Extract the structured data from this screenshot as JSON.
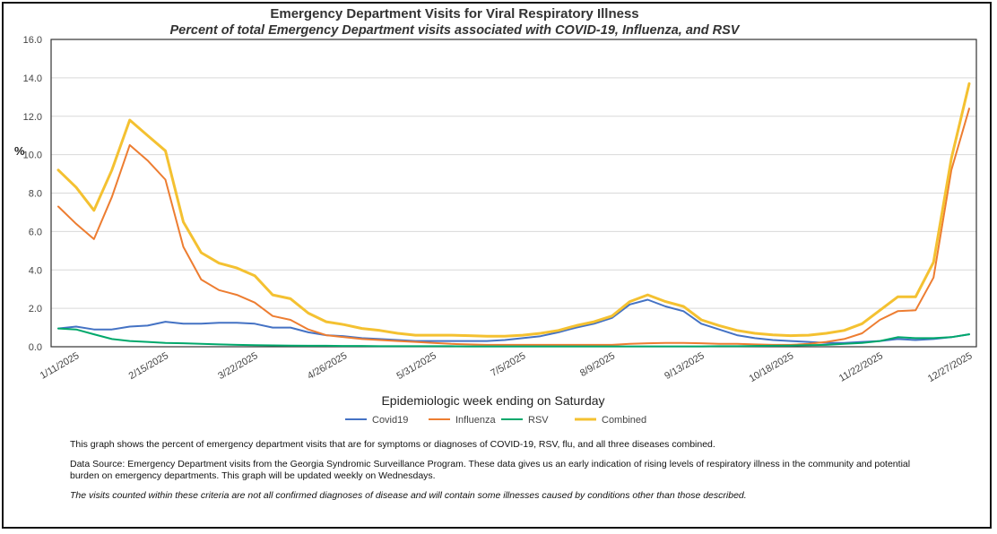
{
  "chart_data": {
    "type": "line",
    "title": "Emergency Department Visits for Viral Respiratory Illness",
    "subtitle": "Percent of total Emergency Department visits associated with COVID-19, Influenza, and RSV",
    "xlabel": "Epidemiologic week ending on Saturday",
    "ylabel": "%",
    "ylim": [
      0,
      16
    ],
    "yticks": [
      "0.0",
      "2.0",
      "4.0",
      "6.0",
      "8.0",
      "10.0",
      "12.0",
      "14.0",
      "16.0"
    ],
    "x_tick_labels": [
      "1/11/2025",
      "2/15/2025",
      "3/22/2025",
      "4/26/2025",
      "5/31/2025",
      "7/5/2025",
      "8/9/2025",
      "9/13/2025",
      "10/18/2025",
      "11/22/2025",
      "12/27/2025"
    ],
    "x_tick_week_index": [
      1,
      6,
      11,
      16,
      21,
      26,
      31,
      36,
      41,
      46,
      51
    ],
    "num_weeks": 52,
    "legend_position": "bottom",
    "grid": "horizontal",
    "series": [
      {
        "name": "Covid19",
        "color": "#4472C4",
        "values": [
          0.95,
          1.05,
          0.9,
          0.9,
          1.05,
          1.1,
          1.3,
          1.2,
          1.2,
          1.25,
          1.25,
          1.2,
          1.0,
          1.0,
          0.75,
          0.6,
          0.55,
          0.45,
          0.4,
          0.35,
          0.3,
          0.3,
          0.3,
          0.3,
          0.3,
          0.35,
          0.45,
          0.55,
          0.75,
          1.0,
          1.2,
          1.5,
          2.2,
          2.45,
          2.1,
          1.85,
          1.2,
          0.9,
          0.6,
          0.45,
          0.35,
          0.3,
          0.25,
          0.2,
          0.2,
          0.25,
          0.3,
          0.4,
          0.35,
          0.4,
          0.5,
          0.65
        ]
      },
      {
        "name": "Influenza",
        "color": "#ED7D31",
        "values": [
          7.3,
          6.4,
          5.6,
          7.8,
          10.5,
          9.7,
          8.7,
          5.2,
          3.5,
          2.95,
          2.7,
          2.3,
          1.6,
          1.4,
          0.9,
          0.6,
          0.5,
          0.4,
          0.35,
          0.3,
          0.25,
          0.2,
          0.15,
          0.12,
          0.1,
          0.1,
          0.1,
          0.1,
          0.1,
          0.1,
          0.1,
          0.1,
          0.15,
          0.18,
          0.2,
          0.2,
          0.18,
          0.15,
          0.15,
          0.12,
          0.1,
          0.1,
          0.15,
          0.25,
          0.4,
          0.7,
          1.4,
          1.85,
          1.9,
          3.6,
          9.2,
          12.4
        ]
      },
      {
        "name": "RSV",
        "color": "#00A86B",
        "values": [
          0.95,
          0.9,
          0.65,
          0.4,
          0.3,
          0.25,
          0.2,
          0.18,
          0.15,
          0.12,
          0.1,
          0.08,
          0.07,
          0.06,
          0.05,
          0.05,
          0.04,
          0.04,
          0.03,
          0.03,
          0.03,
          0.03,
          0.03,
          0.02,
          0.02,
          0.02,
          0.02,
          0.02,
          0.02,
          0.02,
          0.02,
          0.02,
          0.02,
          0.02,
          0.02,
          0.02,
          0.02,
          0.03,
          0.03,
          0.04,
          0.05,
          0.06,
          0.08,
          0.1,
          0.15,
          0.2,
          0.3,
          0.5,
          0.45,
          0.45,
          0.5,
          0.65
        ]
      },
      {
        "name": "Combined",
        "color": "#F4C131",
        "values": [
          9.2,
          8.3,
          7.1,
          9.2,
          11.8,
          11.0,
          10.2,
          6.5,
          4.9,
          4.35,
          4.1,
          3.7,
          2.7,
          2.5,
          1.75,
          1.3,
          1.15,
          0.95,
          0.85,
          0.7,
          0.6,
          0.6,
          0.6,
          0.58,
          0.55,
          0.55,
          0.6,
          0.7,
          0.85,
          1.1,
          1.3,
          1.6,
          2.35,
          2.7,
          2.35,
          2.1,
          1.4,
          1.1,
          0.85,
          0.7,
          0.62,
          0.58,
          0.6,
          0.7,
          0.85,
          1.2,
          1.9,
          2.6,
          2.6,
          4.4,
          9.8,
          13.7
        ]
      }
    ]
  },
  "notes": {
    "line1": "This graph shows the percent of emergency department visits that are for symptoms or diagnoses of COVID-19, RSV, flu, and all three diseases combined.",
    "line2": "Data Source: Emergency Department visits from the Georgia Syndromic Surveillance Program. These data gives us an early indication of rising levels of respiratory illness in the community and potential burden on emergency departments. This graph will be updated weekly on Wednesdays.",
    "line3": "The visits counted within these criteria are not all confirmed diagnoses of disease and will contain some illnesses caused by conditions other than those described."
  }
}
